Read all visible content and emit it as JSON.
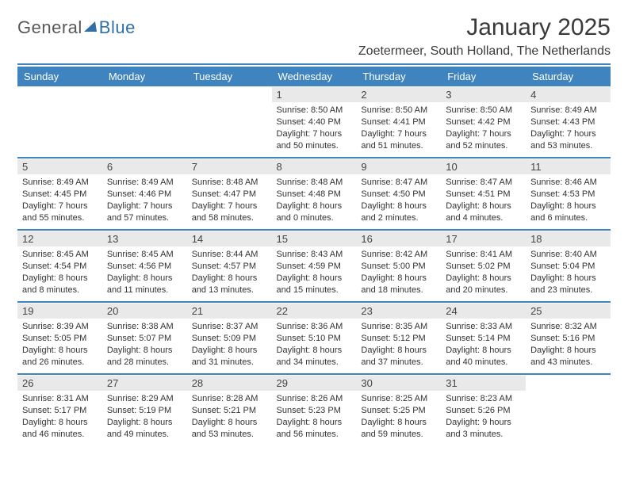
{
  "logo": {
    "text1": "General",
    "text2": "Blue"
  },
  "title": "January 2025",
  "location": "Zoetermeer, South Holland, The Netherlands",
  "header_bg": "#3f84bf",
  "header_text_color": "#ffffff",
  "daynum_bg": "#e9e9e9",
  "rule_color": "#3f84bf",
  "body_text_color": "#333333",
  "day_headers": [
    "Sunday",
    "Monday",
    "Tuesday",
    "Wednesday",
    "Thursday",
    "Friday",
    "Saturday"
  ],
  "weeks": [
    [
      {
        "n": "",
        "sr": "",
        "ss": "",
        "dl": ""
      },
      {
        "n": "",
        "sr": "",
        "ss": "",
        "dl": ""
      },
      {
        "n": "",
        "sr": "",
        "ss": "",
        "dl": ""
      },
      {
        "n": "1",
        "sr": "Sunrise: 8:50 AM",
        "ss": "Sunset: 4:40 PM",
        "dl": "Daylight: 7 hours and 50 minutes."
      },
      {
        "n": "2",
        "sr": "Sunrise: 8:50 AM",
        "ss": "Sunset: 4:41 PM",
        "dl": "Daylight: 7 hours and 51 minutes."
      },
      {
        "n": "3",
        "sr": "Sunrise: 8:50 AM",
        "ss": "Sunset: 4:42 PM",
        "dl": "Daylight: 7 hours and 52 minutes."
      },
      {
        "n": "4",
        "sr": "Sunrise: 8:49 AM",
        "ss": "Sunset: 4:43 PM",
        "dl": "Daylight: 7 hours and 53 minutes."
      }
    ],
    [
      {
        "n": "5",
        "sr": "Sunrise: 8:49 AM",
        "ss": "Sunset: 4:45 PM",
        "dl": "Daylight: 7 hours and 55 minutes."
      },
      {
        "n": "6",
        "sr": "Sunrise: 8:49 AM",
        "ss": "Sunset: 4:46 PM",
        "dl": "Daylight: 7 hours and 57 minutes."
      },
      {
        "n": "7",
        "sr": "Sunrise: 8:48 AM",
        "ss": "Sunset: 4:47 PM",
        "dl": "Daylight: 7 hours and 58 minutes."
      },
      {
        "n": "8",
        "sr": "Sunrise: 8:48 AM",
        "ss": "Sunset: 4:48 PM",
        "dl": "Daylight: 8 hours and 0 minutes."
      },
      {
        "n": "9",
        "sr": "Sunrise: 8:47 AM",
        "ss": "Sunset: 4:50 PM",
        "dl": "Daylight: 8 hours and 2 minutes."
      },
      {
        "n": "10",
        "sr": "Sunrise: 8:47 AM",
        "ss": "Sunset: 4:51 PM",
        "dl": "Daylight: 8 hours and 4 minutes."
      },
      {
        "n": "11",
        "sr": "Sunrise: 8:46 AM",
        "ss": "Sunset: 4:53 PM",
        "dl": "Daylight: 8 hours and 6 minutes."
      }
    ],
    [
      {
        "n": "12",
        "sr": "Sunrise: 8:45 AM",
        "ss": "Sunset: 4:54 PM",
        "dl": "Daylight: 8 hours and 8 minutes."
      },
      {
        "n": "13",
        "sr": "Sunrise: 8:45 AM",
        "ss": "Sunset: 4:56 PM",
        "dl": "Daylight: 8 hours and 11 minutes."
      },
      {
        "n": "14",
        "sr": "Sunrise: 8:44 AM",
        "ss": "Sunset: 4:57 PM",
        "dl": "Daylight: 8 hours and 13 minutes."
      },
      {
        "n": "15",
        "sr": "Sunrise: 8:43 AM",
        "ss": "Sunset: 4:59 PM",
        "dl": "Daylight: 8 hours and 15 minutes."
      },
      {
        "n": "16",
        "sr": "Sunrise: 8:42 AM",
        "ss": "Sunset: 5:00 PM",
        "dl": "Daylight: 8 hours and 18 minutes."
      },
      {
        "n": "17",
        "sr": "Sunrise: 8:41 AM",
        "ss": "Sunset: 5:02 PM",
        "dl": "Daylight: 8 hours and 20 minutes."
      },
      {
        "n": "18",
        "sr": "Sunrise: 8:40 AM",
        "ss": "Sunset: 5:04 PM",
        "dl": "Daylight: 8 hours and 23 minutes."
      }
    ],
    [
      {
        "n": "19",
        "sr": "Sunrise: 8:39 AM",
        "ss": "Sunset: 5:05 PM",
        "dl": "Daylight: 8 hours and 26 minutes."
      },
      {
        "n": "20",
        "sr": "Sunrise: 8:38 AM",
        "ss": "Sunset: 5:07 PM",
        "dl": "Daylight: 8 hours and 28 minutes."
      },
      {
        "n": "21",
        "sr": "Sunrise: 8:37 AM",
        "ss": "Sunset: 5:09 PM",
        "dl": "Daylight: 8 hours and 31 minutes."
      },
      {
        "n": "22",
        "sr": "Sunrise: 8:36 AM",
        "ss": "Sunset: 5:10 PM",
        "dl": "Daylight: 8 hours and 34 minutes."
      },
      {
        "n": "23",
        "sr": "Sunrise: 8:35 AM",
        "ss": "Sunset: 5:12 PM",
        "dl": "Daylight: 8 hours and 37 minutes."
      },
      {
        "n": "24",
        "sr": "Sunrise: 8:33 AM",
        "ss": "Sunset: 5:14 PM",
        "dl": "Daylight: 8 hours and 40 minutes."
      },
      {
        "n": "25",
        "sr": "Sunrise: 8:32 AM",
        "ss": "Sunset: 5:16 PM",
        "dl": "Daylight: 8 hours and 43 minutes."
      }
    ],
    [
      {
        "n": "26",
        "sr": "Sunrise: 8:31 AM",
        "ss": "Sunset: 5:17 PM",
        "dl": "Daylight: 8 hours and 46 minutes."
      },
      {
        "n": "27",
        "sr": "Sunrise: 8:29 AM",
        "ss": "Sunset: 5:19 PM",
        "dl": "Daylight: 8 hours and 49 minutes."
      },
      {
        "n": "28",
        "sr": "Sunrise: 8:28 AM",
        "ss": "Sunset: 5:21 PM",
        "dl": "Daylight: 8 hours and 53 minutes."
      },
      {
        "n": "29",
        "sr": "Sunrise: 8:26 AM",
        "ss": "Sunset: 5:23 PM",
        "dl": "Daylight: 8 hours and 56 minutes."
      },
      {
        "n": "30",
        "sr": "Sunrise: 8:25 AM",
        "ss": "Sunset: 5:25 PM",
        "dl": "Daylight: 8 hours and 59 minutes."
      },
      {
        "n": "31",
        "sr": "Sunrise: 8:23 AM",
        "ss": "Sunset: 5:26 PM",
        "dl": "Daylight: 9 hours and 3 minutes."
      },
      {
        "n": "",
        "sr": "",
        "ss": "",
        "dl": ""
      }
    ]
  ]
}
